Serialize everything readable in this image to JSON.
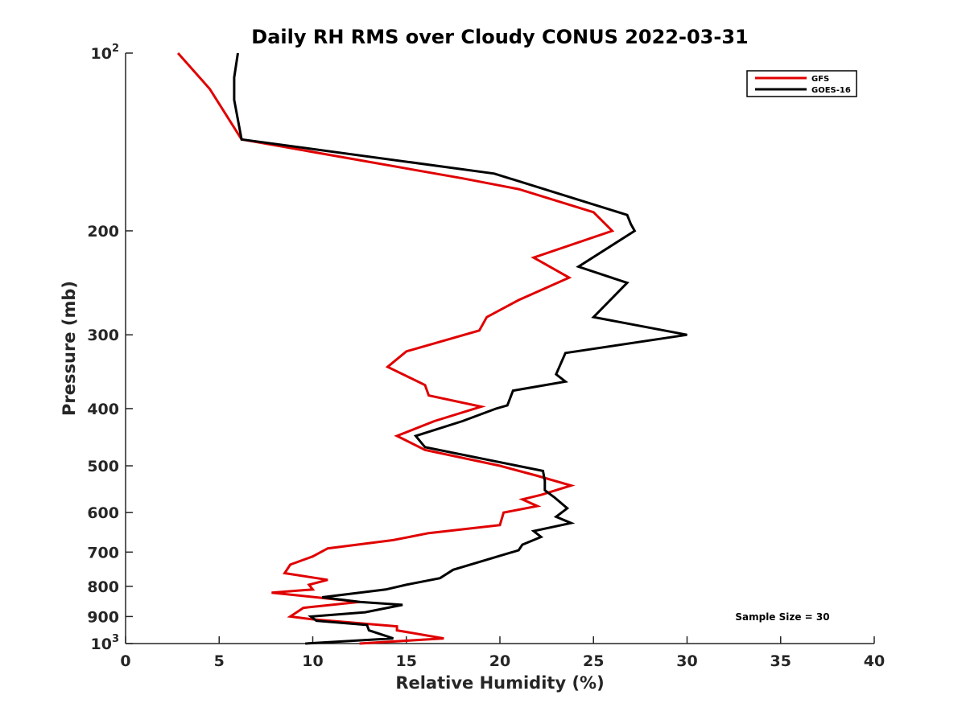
{
  "chart_data": {
    "type": "line",
    "title": "Daily RH RMS over Cloudy CONUS 2022-03-31",
    "xlabel": "Relative Humidity (%)",
    "ylabel": "Pressure (mb)",
    "xlim": [
      0,
      40
    ],
    "ylim": [
      100,
      1000
    ],
    "y_scale": "log",
    "y_reversed": true,
    "grid": false,
    "legend_position": "top-right",
    "x_ticks": [
      0,
      5,
      10,
      15,
      20,
      25,
      30,
      35,
      40
    ],
    "x_tick_labels": [
      "0",
      "5",
      "10",
      "15",
      "20",
      "25",
      "30",
      "35",
      "40"
    ],
    "y_ticks": [
      {
        "value": 100,
        "base": "10",
        "sup": "2"
      },
      {
        "value": 200,
        "label": "200"
      },
      {
        "value": 300,
        "label": "300"
      },
      {
        "value": 400,
        "label": "400"
      },
      {
        "value": 500,
        "label": "500"
      },
      {
        "value": 600,
        "label": "600"
      },
      {
        "value": 700,
        "label": "700"
      },
      {
        "value": 800,
        "label": "800"
      },
      {
        "value": 900,
        "label": "900"
      },
      {
        "value": 1000,
        "base": "10",
        "sup": "3"
      }
    ],
    "series": [
      {
        "name": "GFS",
        "color": "#e00000",
        "x": [
          2.8,
          4.5,
          6.2,
          18.0,
          21.0,
          25.0,
          26.0,
          21.8,
          23.7,
          21.0,
          19.3,
          18.9,
          15.0,
          14.0,
          16.0,
          16.2,
          19.0,
          16.5,
          14.5,
          16.0,
          20.0,
          22.0,
          23.8,
          22.2,
          21.2,
          22.0,
          20.2,
          20.0,
          16.2,
          14.3,
          10.8,
          10.0,
          8.8,
          8.5,
          10.8,
          9.8,
          10.0,
          7.8,
          12.5,
          9.5,
          8.8,
          10.0,
          14.5,
          14.5,
          17.0,
          12.5
        ],
        "y": [
          100,
          115,
          140,
          163,
          170,
          186,
          200,
          222,
          240,
          262,
          280,
          295,
          320,
          340,
          365,
          380,
          397,
          420,
          445,
          470,
          500,
          520,
          540,
          560,
          570,
          585,
          600,
          630,
          650,
          668,
          690,
          712,
          735,
          760,
          780,
          795,
          810,
          820,
          850,
          870,
          900,
          910,
          935,
          950,
          980,
          1000
        ]
      },
      {
        "name": "GOES-16",
        "color": "#000000",
        "x": [
          6.0,
          5.8,
          5.8,
          6.2,
          19.7,
          26.8,
          27.0,
          27.2,
          24.2,
          26.8,
          25.0,
          30.0,
          23.5,
          23.0,
          23.5,
          20.7,
          20.4,
          19.8,
          18.0,
          15.5,
          16.0,
          22.3,
          22.4,
          22.4,
          22.9,
          23.6,
          23.0,
          23.8,
          21.8,
          22.2,
          21.2,
          21.0,
          17.5,
          16.8,
          15.0,
          13.9,
          10.5,
          12.5,
          14.8,
          12.8,
          9.9,
          10.2,
          12.9,
          13.0,
          14.3,
          9.6
        ],
        "y": [
          100,
          110,
          120,
          140,
          160,
          188,
          195,
          200,
          230,
          245,
          280,
          300,
          322,
          350,
          360,
          373,
          395,
          400,
          420,
          445,
          465,
          510,
          530,
          550,
          565,
          590,
          610,
          625,
          645,
          660,
          680,
          695,
          750,
          775,
          795,
          810,
          835,
          850,
          860,
          885,
          900,
          915,
          930,
          950,
          980,
          1000
        ]
      }
    ],
    "annotations": [
      "Sample Size = 30"
    ]
  }
}
